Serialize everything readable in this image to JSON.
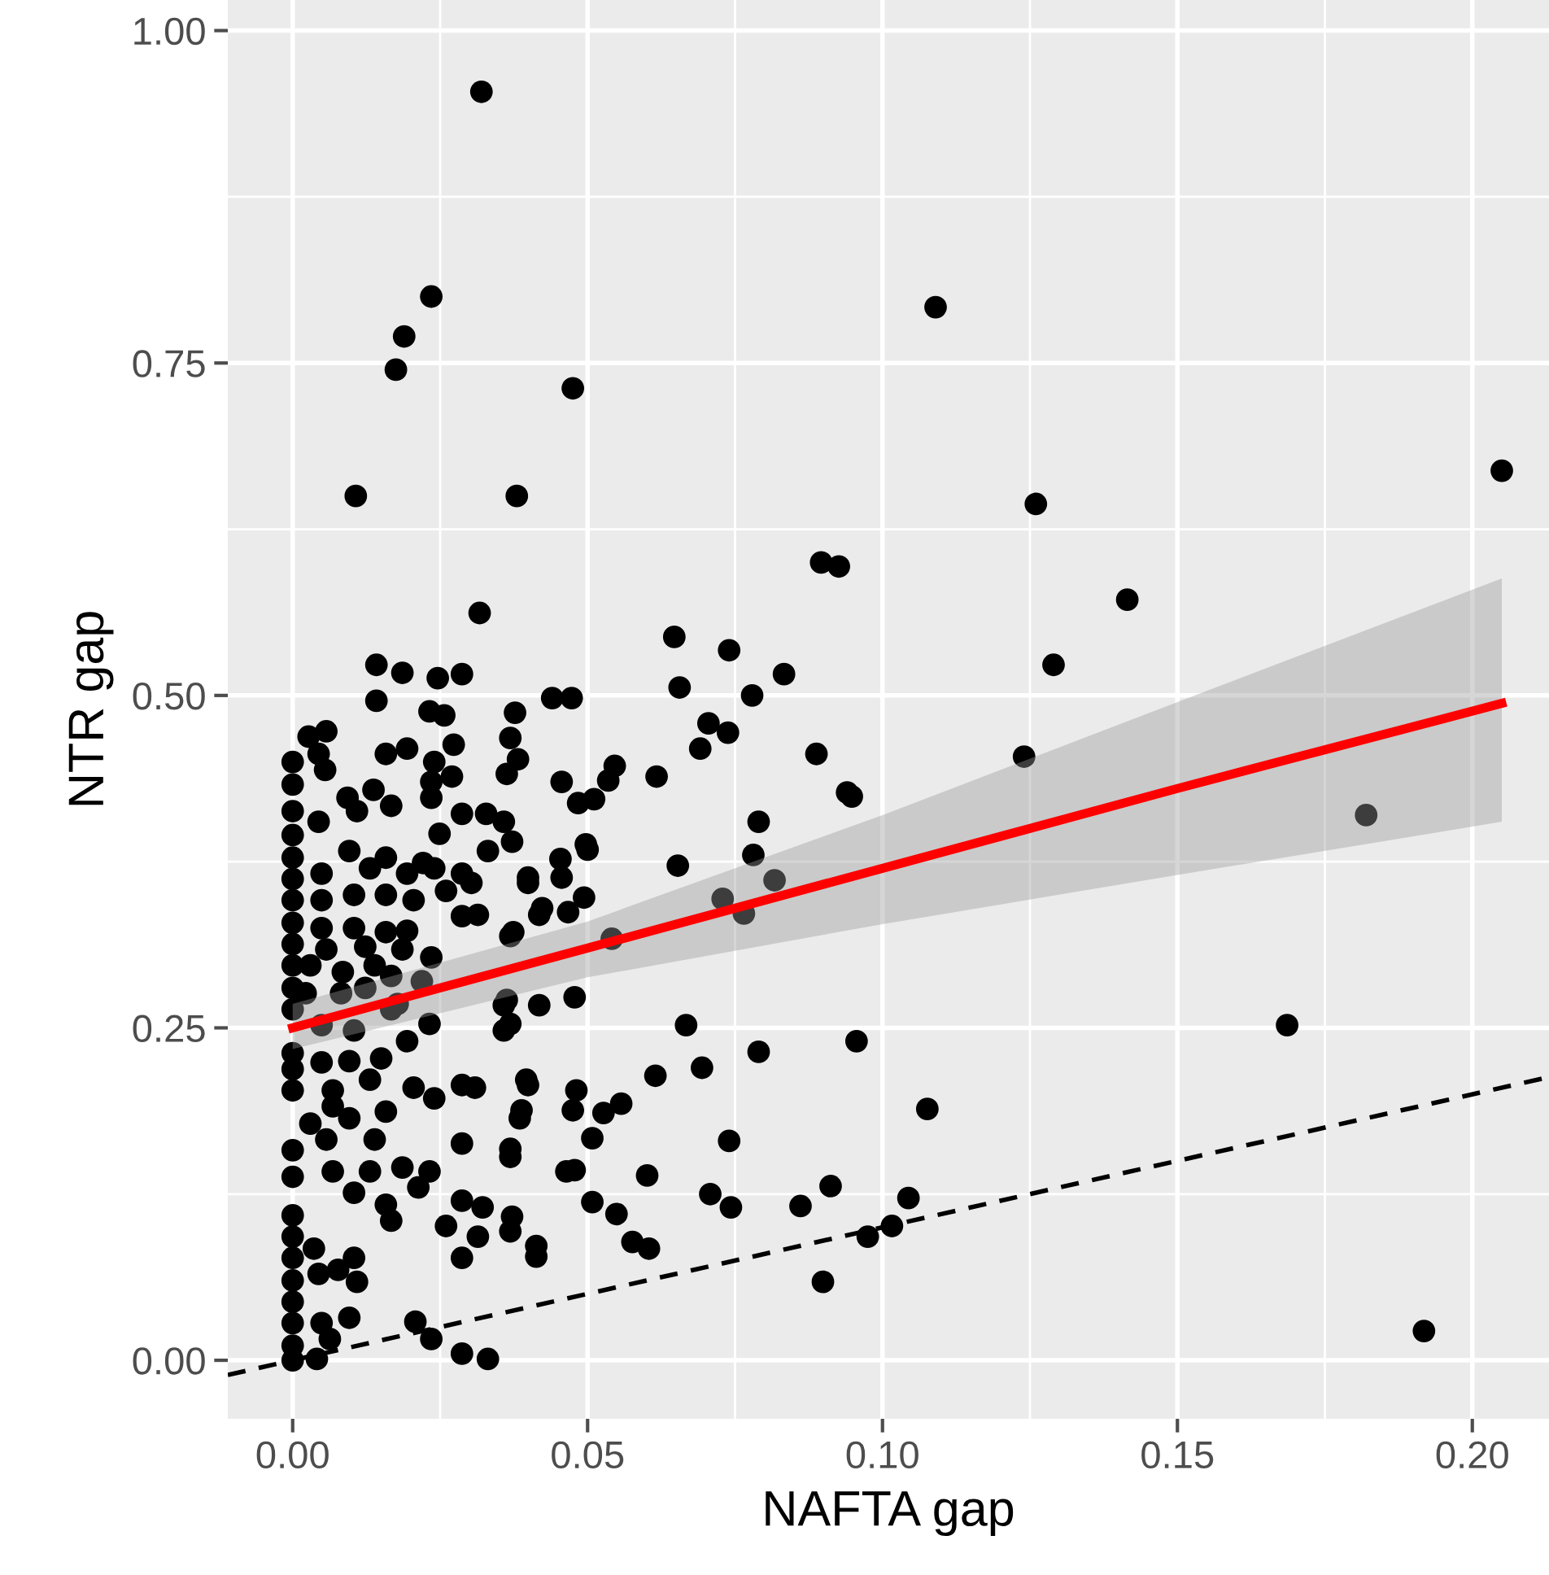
{
  "chart_data": {
    "type": "scatter",
    "xlabel": "NAFTA gap",
    "ylabel": "NTR gap",
    "xlim": [
      -0.011,
      0.213
    ],
    "ylim": [
      -0.044,
      1.023
    ],
    "xticks": [
      {
        "value": 0,
        "label": "0.00"
      },
      {
        "value": 0.05,
        "label": "0.05"
      },
      {
        "value": 0.1,
        "label": "0.10"
      },
      {
        "value": 0.15,
        "label": "0.15"
      },
      {
        "value": 0.2,
        "label": "0.20"
      }
    ],
    "yticks": [
      {
        "value": 0,
        "label": "0.00"
      },
      {
        "value": 0.25,
        "label": "0.25"
      },
      {
        "value": 0.5,
        "label": "0.50"
      },
      {
        "value": 0.75,
        "label": "0.75"
      },
      {
        "value": 1,
        "label": "1.00"
      }
    ],
    "grid": true,
    "series": [
      {
        "color": "#000000",
        "marker": "circle",
        "x": [
          0.032,
          0.0235,
          0.0189,
          0.0175,
          0.0475,
          0.109,
          0.0107,
          0.038,
          0.126,
          0.205,
          0.0317,
          0.1415,
          0.129,
          0.182,
          0.1686,
          0.1918,
          0.0948,
          0.0896,
          0.0926,
          0.0647,
          0.074,
          0.0833,
          0.0656,
          0.0779,
          0.044,
          0.0473,
          0.0377,
          0.0369,
          0.0382,
          0.0705,
          0.0738,
          0.0691,
          0.0456,
          0.0546,
          0.0535,
          0.0511,
          0.0484,
          0.0617,
          0.0888,
          0.094,
          0.124,
          0.079,
          0.0781,
          0.0817,
          0.0729,
          0.0765,
          0.0497,
          0.05,
          0.0454,
          0.0456,
          0.0399,
          0.0653,
          0.0494,
          0.0423,
          0.0467,
          0.0374,
          0.0541,
          0.0363,
          0.0369,
          0.0418,
          0.0478,
          0.0667,
          0.079,
          0.0956,
          0.0396,
          0.0615,
          0.0694,
          0.0481,
          0.0475,
          0.0388,
          0.0527,
          0.0557,
          0.0508,
          0.074,
          0.1076,
          0.0369,
          0.0369,
          0.0464,
          0.0478,
          0.0601,
          0.0508,
          0.0549,
          0.0708,
          0.0743,
          0.0861,
          0.0912,
          0.1044,
          0.1016,
          0.0975,
          0.0372,
          0.0369,
          0.0413,
          0.0576,
          0.0604,
          0.0899,
          0.0142,
          0.0186,
          0.0246,
          0.0287,
          0.0142,
          0.0232,
          0.0257,
          0.0027,
          0.0057,
          0.0273,
          0,
          0.0044,
          0.0055,
          0.0158,
          0.0194,
          0.024,
          0.027,
          0.0235,
          0.0363,
          0,
          0,
          0.0093,
          0.0137,
          0.0167,
          0.0235,
          0.0044,
          0.0109,
          0,
          0.0249,
          0.0287,
          0.0328,
          0.0358,
          0.0372,
          0.0331,
          0,
          0,
          0,
          0,
          0,
          0,
          0,
          0,
          0.0049,
          0.0096,
          0.0131,
          0.0158,
          0.0194,
          0.024,
          0.0287,
          0.0303,
          0.026,
          0.0221,
          0.0049,
          0.0104,
          0.0158,
          0.0205,
          0.0399,
          0.0418,
          0.0287,
          0.0314,
          0.0369,
          0.0049,
          0.0104,
          0.0158,
          0.0194,
          0.0057,
          0.0123,
          0.0186,
          0.0235,
          0.003,
          0.0085,
          0.0139,
          0.0167,
          0.0022,
          0.0082,
          0.0123,
          0.0178,
          0.0219,
          0.0049,
          0.0104,
          0.0167,
          0.0358,
          0.0358,
          0,
          0,
          0.0049,
          0.0096,
          0.015,
          0.0194,
          0.0232,
          0,
          0.0068,
          0.0131,
          0.0205,
          0.024,
          0.0287,
          0.0309,
          0.0399,
          0.0068,
          0.0096,
          0.0158,
          0.0385,
          0.003,
          0.0057,
          0,
          0,
          0.0068,
          0.0131,
          0.0139,
          0.0186,
          0.0232,
          0.0287,
          0.0104,
          0.0158,
          0.0213,
          0.0287,
          0.0322,
          0.0167,
          0.026,
          0.0314,
          0.0413,
          0.0287,
          0,
          0,
          0,
          0,
          0,
          0,
          0,
          0,
          0.0036,
          0.0044,
          0.0077,
          0.0104,
          0.0109,
          0.0096,
          0.0049,
          0.0063,
          0.0041,
          0.0208,
          0.0235,
          0.0287,
          0.0331
        ],
        "values": [
          0.954,
          0.8,
          0.77,
          0.745,
          0.731,
          0.792,
          0.65,
          0.65,
          0.644,
          0.669,
          0.562,
          0.572,
          0.523,
          0.41,
          0.252,
          0.022,
          0.424,
          0.6,
          0.597,
          0.544,
          0.534,
          0.516,
          0.506,
          0.5,
          0.498,
          0.498,
          0.487,
          0.468,
          0.452,
          0.479,
          0.472,
          0.46,
          0.435,
          0.447,
          0.436,
          0.422,
          0.419,
          0.439,
          0.456,
          0.427,
          0.454,
          0.405,
          0.38,
          0.361,
          0.347,
          0.336,
          0.388,
          0.384,
          0.377,
          0.363,
          0.363,
          0.372,
          0.348,
          0.34,
          0.337,
          0.322,
          0.317,
          0.271,
          0.253,
          0.267,
          0.273,
          0.252,
          0.232,
          0.24,
          0.211,
          0.214,
          0.22,
          0.203,
          0.188,
          0.188,
          0.186,
          0.193,
          0.167,
          0.165,
          0.189,
          0.159,
          0.153,
          0.142,
          0.143,
          0.139,
          0.119,
          0.11,
          0.125,
          0.115,
          0.116,
          0.131,
          0.122,
          0.101,
          0.093,
          0.108,
          0.097,
          0.086,
          0.089,
          0.084,
          0.059,
          0.523,
          0.517,
          0.513,
          0.516,
          0.496,
          0.488,
          0.485,
          0.469,
          0.473,
          0.463,
          0.45,
          0.456,
          0.444,
          0.456,
          0.46,
          0.45,
          0.439,
          0.435,
          0.441,
          0.433,
          0.413,
          0.423,
          0.429,
          0.417,
          0.423,
          0.405,
          0.413,
          0.395,
          0.396,
          0.411,
          0.411,
          0.405,
          0.39,
          0.383,
          0.378,
          0.362,
          0.346,
          0.329,
          0.313,
          0.297,
          0.28,
          0.264,
          0.366,
          0.383,
          0.37,
          0.378,
          0.366,
          0.37,
          0.366,
          0.359,
          0.353,
          0.374,
          0.346,
          0.35,
          0.35,
          0.346,
          0.359,
          0.335,
          0.334,
          0.335,
          0.319,
          0.325,
          0.325,
          0.322,
          0.323,
          0.309,
          0.311,
          0.309,
          0.303,
          0.297,
          0.292,
          0.297,
          0.289,
          0.276,
          0.276,
          0.28,
          0.268,
          0.285,
          0.252,
          0.248,
          0.264,
          0.267,
          0.248,
          0.231,
          0.219,
          0.224,
          0.225,
          0.227,
          0.24,
          0.253,
          0.203,
          0.203,
          0.211,
          0.205,
          0.197,
          0.207,
          0.205,
          0.207,
          0.191,
          0.182,
          0.187,
          0.182,
          0.178,
          0.166,
          0.158,
          0.138,
          0.142,
          0.142,
          0.166,
          0.145,
          0.142,
          0.163,
          0.126,
          0.117,
          0.13,
          0.12,
          0.115,
          0.105,
          0.101,
          0.093,
          0.078,
          0.077,
          0.109,
          0.093,
          0.077,
          0.06,
          0.044,
          0.028,
          0.011,
          0,
          0.084,
          0.065,
          0.068,
          0.077,
          0.059,
          0.032,
          0.028,
          0.016,
          0.001,
          0.029,
          0.016,
          0.005,
          0.001
        ]
      },
      {
        "type": "line",
        "color": "#ff0000",
        "line_style": "solid",
        "x": [
          0,
          0.05,
          0.1,
          0.15,
          0.205
        ],
        "values": [
          0.25,
          0.31,
          0.37,
          0.43,
          0.494
        ],
        "lower": [
          0.234,
          0.288,
          0.328,
          0.365,
          0.405
        ],
        "upper": [
          0.268,
          0.33,
          0.41,
          0.495,
          0.588
        ]
      },
      {
        "type": "line",
        "color": "#000000",
        "line_style": "dashed",
        "x": [
          -0.011,
          0.213
        ],
        "values": [
          -0.011,
          0.213
        ]
      }
    ]
  }
}
